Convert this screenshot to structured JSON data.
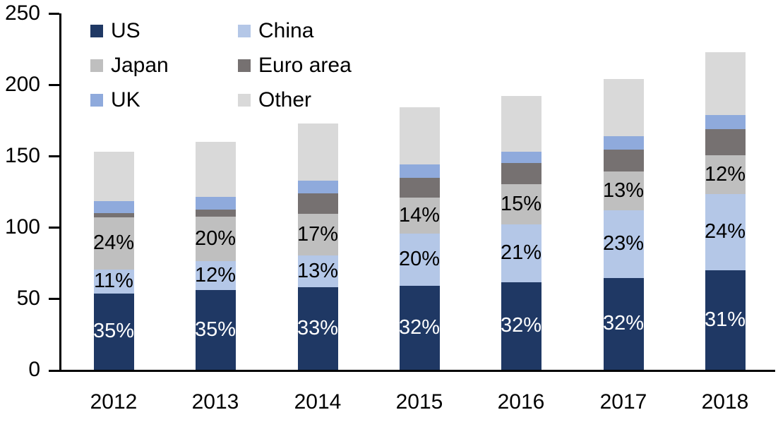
{
  "chart_data": {
    "type": "bar",
    "stacked": true,
    "title": "",
    "xlabel": "",
    "ylabel": "",
    "categories": [
      "2012",
      "2013",
      "2014",
      "2015",
      "2016",
      "2017",
      "2018"
    ],
    "series": [
      {
        "name": "US",
        "color": "#1F3864",
        "values": [
          53.5,
          56,
          58,
          59,
          61.5,
          64.5,
          70
        ],
        "labels": [
          "35%",
          "35%",
          "33%",
          "32%",
          "32%",
          "32%",
          "31%"
        ],
        "label_text_color": "#FFFFFF"
      },
      {
        "name": "China",
        "color": "#B4C7E7",
        "values": [
          17,
          20,
          22,
          36.5,
          40.5,
          47.5,
          53.5
        ],
        "labels": [
          "11%",
          "12%",
          "13%",
          "20%",
          "21%",
          "23%",
          "24%"
        ],
        "label_text_color": "#000000"
      },
      {
        "name": "Japan",
        "color": "#BFBFBF",
        "values": [
          36.5,
          31.5,
          29.5,
          25.5,
          28,
          27,
          27
        ],
        "labels": [
          "24%",
          "20%",
          "17%",
          "14%",
          "15%",
          "13%",
          "12%"
        ],
        "label_text_color": "#000000"
      },
      {
        "name": "Euro area",
        "color": "#767171",
        "values": [
          3,
          5,
          14.5,
          13.5,
          15,
          15.5,
          18.5
        ],
        "labels": null,
        "label_text_color": null
      },
      {
        "name": "UK",
        "color": "#8FAADC",
        "values": [
          8.5,
          9,
          8.5,
          9.5,
          8,
          9.5,
          9.5
        ],
        "labels": null,
        "label_text_color": null
      },
      {
        "name": "Other",
        "color": "#D9D9D9",
        "values": [
          34.5,
          38.5,
          40.5,
          40,
          39,
          40,
          44.5
        ],
        "labels": null,
        "label_text_color": null
      }
    ],
    "approx_totals": [
      153,
      160,
      173,
      184,
      192,
      204,
      223
    ],
    "y_axis": {
      "min": 0,
      "max": 250,
      "tick_interval": 50,
      "ticks": [
        "0",
        "50",
        "100",
        "150",
        "200",
        "250"
      ]
    },
    "legend": {
      "position": "top-left",
      "columns": 2,
      "entries": [
        "US",
        "China",
        "Japan",
        "Euro area",
        "UK",
        "Other"
      ]
    },
    "grid": false,
    "axis_color": "#000000",
    "background_color": "#FFFFFF"
  }
}
